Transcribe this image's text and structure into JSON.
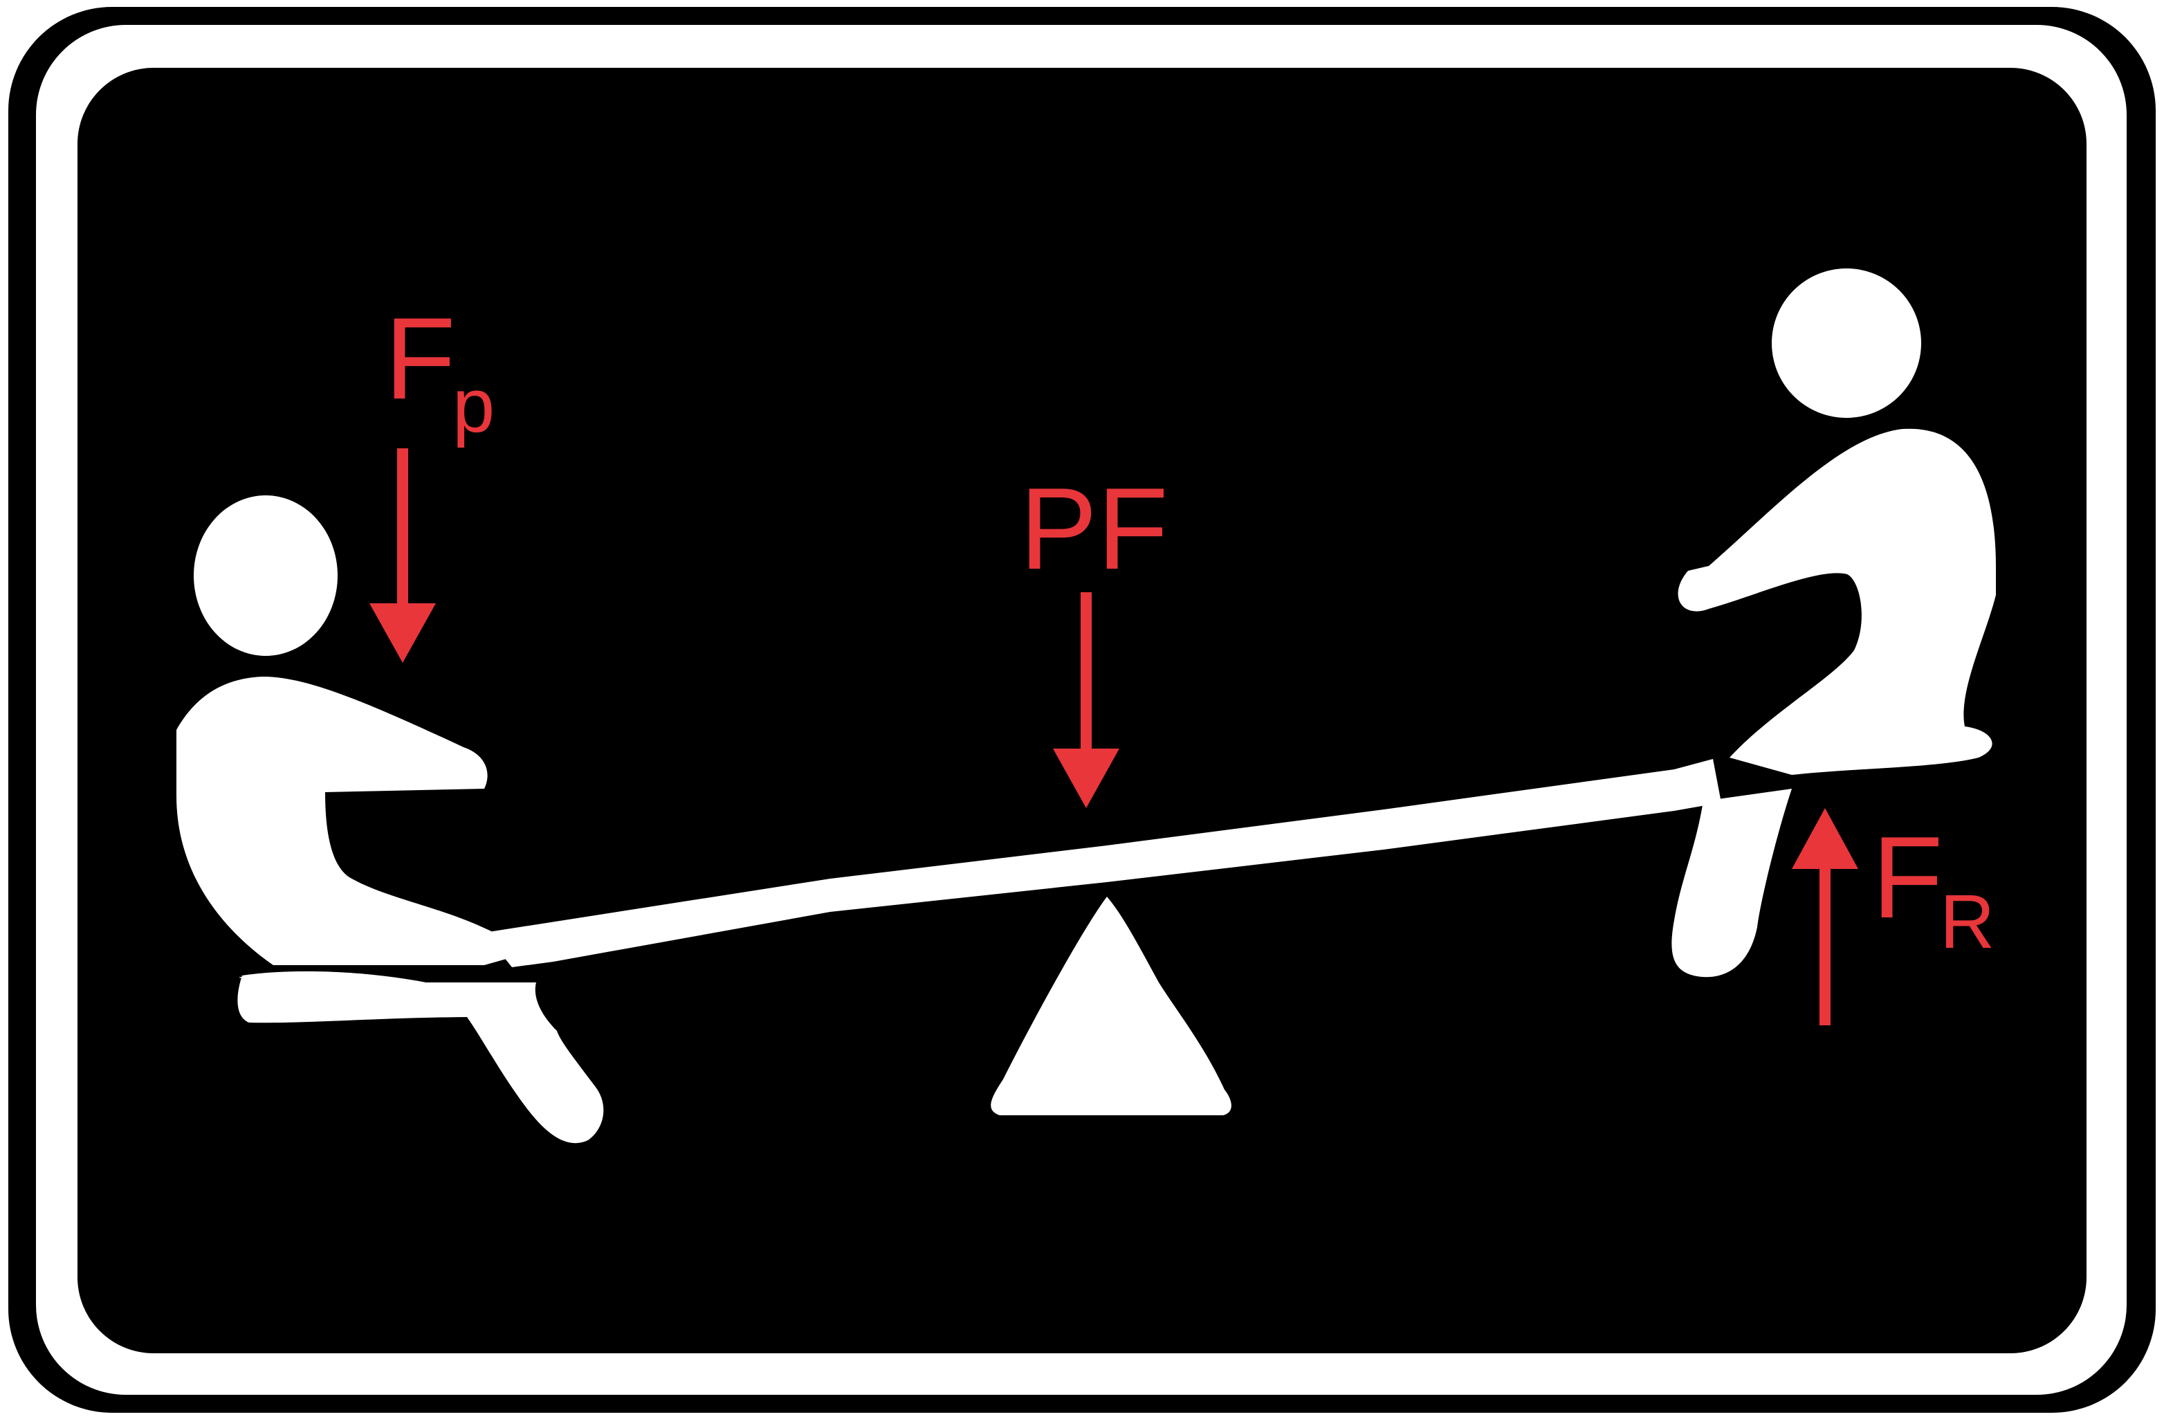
{
  "diagram": {
    "labels": {
      "effort_main": "F",
      "effort_sub": "p",
      "fulcrum": "PF",
      "load_main": "F",
      "load_sub": "R"
    },
    "forces": [
      {
        "label": "Fp",
        "direction": "down"
      },
      {
        "label": "PF",
        "direction": "down"
      },
      {
        "label": "FR",
        "direction": "up"
      }
    ]
  },
  "colors": {
    "background": "#000000",
    "frame": "#ffffff",
    "figures": "#ffffff",
    "annotation": "#e8363a"
  }
}
